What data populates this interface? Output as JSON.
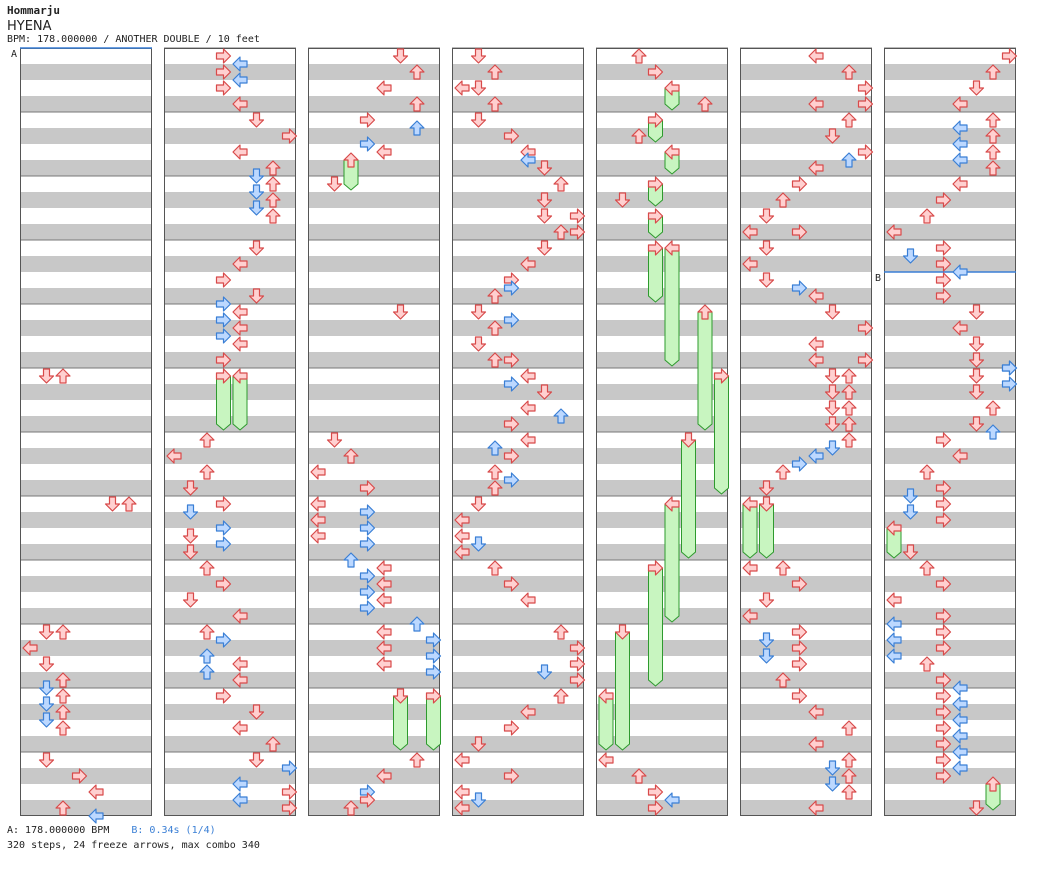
{
  "header": {
    "artist": "Hommarju",
    "title": "HYENA",
    "meta": "BPM: 178.000000 / ANOTHER DOUBLE / 10 feet"
  },
  "markers": [
    {
      "label": "A",
      "color": "#3a7fd5"
    },
    {
      "label": "B",
      "color": "#3a7fd5"
    }
  ],
  "footer": {
    "bpm": "A: 178.000000 BPM",
    "stop": "B: 0.34s (1/4)",
    "stats": "320 steps, 24 freeze arrows, max combo 340"
  },
  "colors": {
    "stripe": "#c8c8c8",
    "border": "#555555",
    "red_fill": "#ffd0d0",
    "red_stroke": "#d84a4a",
    "blue_fill": "#bcd8ff",
    "blue_stroke": "#3a7fd5",
    "freeze_fill": "#c8f5c0",
    "freeze_stroke": "#2e9a2e"
  },
  "chart": {
    "columns": 7,
    "measures_per_column": 12,
    "lanes": 8
  }
}
